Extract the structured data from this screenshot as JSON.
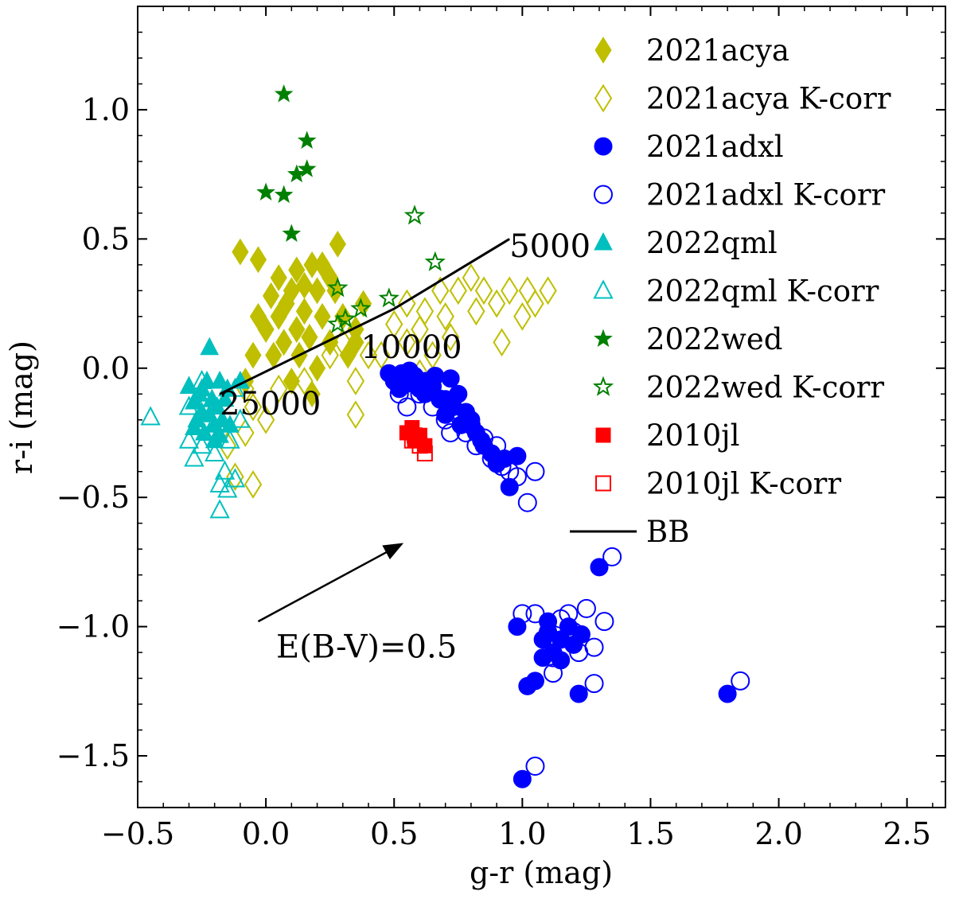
{
  "chart_data": {
    "type": "scatter",
    "xlabel": "g-r (mag)",
    "ylabel": "r-i (mag)",
    "xlim": [
      -0.5,
      2.65
    ],
    "ylim": [
      -1.7,
      1.4
    ],
    "xticks": [
      -0.5,
      0.0,
      0.5,
      1.0,
      1.5,
      2.0,
      2.5
    ],
    "xtick_labels": [
      "−0.5",
      "0.0",
      "0.5",
      "1.0",
      "1.5",
      "2.0",
      "2.5"
    ],
    "yticks": [
      1.0,
      0.5,
      0.0,
      -0.5,
      -1.0,
      -1.5
    ],
    "ytick_labels": [
      "1.0",
      "0.5",
      "0.0",
      "−0.5",
      "−1.0",
      "−1.5"
    ],
    "legend_position": "top-right",
    "grid": false,
    "series": [
      {
        "name": "2021acya",
        "marker": "diamond",
        "filled": true,
        "color": "#bfbf00",
        "points": [
          [
            -0.08,
            -0.05
          ],
          [
            -0.05,
            0.05
          ],
          [
            0.0,
            0.15
          ],
          [
            0.02,
            0.28
          ],
          [
            0.05,
            0.35
          ],
          [
            0.05,
            0.2
          ],
          [
            0.07,
            0.1
          ],
          [
            0.08,
            0.25
          ],
          [
            0.1,
            0.3
          ],
          [
            0.12,
            0.15
          ],
          [
            0.13,
            0.05
          ],
          [
            0.15,
            0.22
          ],
          [
            0.15,
            0.32
          ],
          [
            0.17,
            0.12
          ],
          [
            0.18,
            0.4
          ],
          [
            0.2,
            0.3
          ],
          [
            0.22,
            0.2
          ],
          [
            0.25,
            0.1
          ],
          [
            0.27,
            0.3
          ],
          [
            0.28,
            0.48
          ],
          [
            0.3,
            0.2
          ],
          [
            0.32,
            0.05
          ],
          [
            0.35,
            0.15
          ],
          [
            0.38,
            0.25
          ],
          [
            0.1,
            -0.05
          ],
          [
            0.03,
            0.05
          ],
          [
            -0.03,
            0.2
          ],
          [
            0.18,
            -0.1
          ],
          [
            -0.1,
            0.45
          ],
          [
            -0.03,
            0.42
          ],
          [
            0.2,
            0.0
          ],
          [
            0.25,
            0.35
          ],
          [
            0.22,
            0.4
          ],
          [
            0.12,
            0.38
          ],
          [
            0.35,
            0.1
          ]
        ]
      },
      {
        "name": "2021acya K-corr",
        "marker": "diamond",
        "filled": false,
        "color": "#bfbf00",
        "points": [
          [
            -0.15,
            -0.3
          ],
          [
            -0.12,
            -0.42
          ],
          [
            -0.08,
            -0.25
          ],
          [
            -0.05,
            -0.15
          ],
          [
            0.0,
            -0.2
          ],
          [
            0.05,
            -0.08
          ],
          [
            -0.05,
            -0.45
          ],
          [
            0.3,
            0.1
          ],
          [
            0.35,
            -0.05
          ],
          [
            0.35,
            -0.18
          ],
          [
            0.45,
            0.05
          ],
          [
            0.5,
            0.17
          ],
          [
            0.55,
            0.1
          ],
          [
            0.55,
            0.25
          ],
          [
            0.6,
            0.15
          ],
          [
            0.65,
            0.05
          ],
          [
            0.7,
            0.2
          ],
          [
            0.72,
            0.12
          ],
          [
            0.75,
            0.3
          ],
          [
            0.8,
            0.35
          ],
          [
            0.82,
            0.22
          ],
          [
            0.85,
            0.3
          ],
          [
            0.9,
            0.25
          ],
          [
            0.92,
            0.1
          ],
          [
            0.95,
            0.3
          ],
          [
            1.0,
            0.2
          ],
          [
            1.02,
            0.3
          ],
          [
            1.05,
            0.25
          ],
          [
            1.1,
            0.3
          ],
          [
            0.6,
            -0.02
          ],
          [
            0.4,
            0.05
          ],
          [
            -0.08,
            -0.08
          ],
          [
            0.15,
            -0.05
          ],
          [
            0.25,
            0.05
          ],
          [
            0.62,
            0.22
          ],
          [
            0.68,
            0.3
          ]
        ]
      },
      {
        "name": "2021adxl",
        "marker": "circle",
        "filled": true,
        "color": "#0000ff",
        "points": [
          [
            0.48,
            -0.02
          ],
          [
            0.5,
            -0.05
          ],
          [
            0.53,
            -0.02
          ],
          [
            0.55,
            -0.06
          ],
          [
            0.58,
            -0.03
          ],
          [
            0.6,
            -0.08
          ],
          [
            0.62,
            -0.1
          ],
          [
            0.65,
            -0.07
          ],
          [
            0.68,
            -0.12
          ],
          [
            0.7,
            -0.12
          ],
          [
            0.73,
            -0.15
          ],
          [
            0.75,
            -0.1
          ],
          [
            0.78,
            -0.17
          ],
          [
            0.8,
            -0.2
          ],
          [
            0.82,
            -0.25
          ],
          [
            0.85,
            -0.3
          ],
          [
            0.88,
            -0.33
          ],
          [
            0.9,
            -0.37
          ],
          [
            0.93,
            -0.35
          ],
          [
            0.95,
            -0.46
          ],
          [
            0.98,
            -0.34
          ],
          [
            0.72,
            -0.04
          ],
          [
            0.66,
            -0.03
          ],
          [
            0.56,
            -0.01
          ],
          [
            0.52,
            -0.08
          ],
          [
            0.62,
            -0.05
          ],
          [
            0.7,
            -0.18
          ],
          [
            0.76,
            -0.22
          ],
          [
            0.84,
            -0.28
          ],
          [
            1.3,
            -0.77
          ],
          [
            0.98,
            -1.0
          ],
          [
            1.02,
            -1.23
          ],
          [
            1.05,
            -1.21
          ],
          [
            1.08,
            -1.05
          ],
          [
            1.1,
            -0.98
          ],
          [
            1.12,
            -1.1
          ],
          [
            1.15,
            -1.05
          ],
          [
            1.15,
            -1.13
          ],
          [
            1.18,
            -1.0
          ],
          [
            1.2,
            -1.07
          ],
          [
            1.23,
            -1.03
          ],
          [
            1.22,
            -1.26
          ],
          [
            1.8,
            -1.26
          ],
          [
            1.0,
            -1.59
          ],
          [
            1.1,
            -1.02
          ],
          [
            1.08,
            -1.12
          ]
        ]
      },
      {
        "name": "2021adxl K-corr",
        "marker": "circle",
        "filled": false,
        "color": "#0000ff",
        "points": [
          [
            0.52,
            -0.1
          ],
          [
            0.55,
            -0.15
          ],
          [
            0.6,
            -0.1
          ],
          [
            0.65,
            -0.15
          ],
          [
            0.7,
            -0.2
          ],
          [
            0.72,
            -0.25
          ],
          [
            0.75,
            -0.18
          ],
          [
            0.78,
            -0.25
          ],
          [
            0.8,
            -0.22
          ],
          [
            0.82,
            -0.3
          ],
          [
            0.85,
            -0.27
          ],
          [
            0.88,
            -0.35
          ],
          [
            0.92,
            -0.38
          ],
          [
            0.95,
            -0.4
          ],
          [
            0.98,
            -0.42
          ],
          [
            1.02,
            -0.52
          ],
          [
            1.05,
            -0.4
          ],
          [
            1.35,
            -0.73
          ],
          [
            1.0,
            -0.95
          ],
          [
            1.05,
            -0.95
          ],
          [
            1.1,
            -1.05
          ],
          [
            1.12,
            -1.18
          ],
          [
            1.15,
            -0.97
          ],
          [
            1.18,
            -0.95
          ],
          [
            1.2,
            -1.02
          ],
          [
            1.22,
            -1.1
          ],
          [
            1.25,
            -0.93
          ],
          [
            1.28,
            -1.08
          ],
          [
            1.28,
            -1.22
          ],
          [
            1.32,
            -0.98
          ],
          [
            1.85,
            -1.21
          ],
          [
            1.05,
            -1.54
          ],
          [
            0.58,
            -0.05
          ],
          [
            0.68,
            -0.12
          ],
          [
            0.9,
            -0.3
          ],
          [
            1.12,
            -1.12
          ]
        ]
      },
      {
        "name": "2022qml",
        "marker": "triangle",
        "filled": true,
        "color": "#00bfbf",
        "points": [
          [
            -0.3,
            -0.07
          ],
          [
            -0.28,
            -0.13
          ],
          [
            -0.27,
            -0.2
          ],
          [
            -0.26,
            -0.1
          ],
          [
            -0.25,
            -0.17
          ],
          [
            -0.24,
            -0.25
          ],
          [
            -0.23,
            -0.05
          ],
          [
            -0.22,
            -0.18
          ],
          [
            -0.21,
            -0.12
          ],
          [
            -0.2,
            -0.22
          ],
          [
            -0.19,
            -0.15
          ],
          [
            -0.18,
            -0.26
          ],
          [
            -0.17,
            -0.2
          ],
          [
            -0.16,
            -0.12
          ],
          [
            -0.15,
            -0.08
          ],
          [
            -0.14,
            -0.22
          ],
          [
            -0.22,
            0.08
          ],
          [
            -0.1,
            -0.05
          ],
          [
            -0.25,
            -0.08
          ],
          [
            -0.2,
            -0.28
          ],
          [
            -0.28,
            -0.23
          ],
          [
            -0.18,
            -0.05
          ]
        ]
      },
      {
        "name": "2022qml K-corr",
        "marker": "triangle",
        "filled": false,
        "color": "#00bfbf",
        "points": [
          [
            -0.45,
            -0.19
          ],
          [
            -0.3,
            -0.28
          ],
          [
            -0.28,
            -0.35
          ],
          [
            -0.27,
            -0.22
          ],
          [
            -0.25,
            -0.3
          ],
          [
            -0.23,
            -0.12
          ],
          [
            -0.22,
            -0.25
          ],
          [
            -0.2,
            -0.33
          ],
          [
            -0.18,
            -0.45
          ],
          [
            -0.18,
            -0.55
          ],
          [
            -0.16,
            -0.4
          ],
          [
            -0.15,
            -0.47
          ],
          [
            -0.14,
            -0.28
          ],
          [
            -0.12,
            -0.43
          ],
          [
            -0.1,
            -0.2
          ],
          [
            -0.25,
            -0.05
          ],
          [
            -0.12,
            -0.08
          ],
          [
            -0.3,
            -0.15
          ]
        ]
      },
      {
        "name": "2022wed",
        "marker": "star",
        "filled": true,
        "color": "#008000",
        "points": [
          [
            0.07,
            1.06
          ],
          [
            0.16,
            0.88
          ],
          [
            0.16,
            0.77
          ],
          [
            0.12,
            0.75
          ],
          [
            0.0,
            0.68
          ],
          [
            0.07,
            0.67
          ],
          [
            0.1,
            0.52
          ]
        ]
      },
      {
        "name": "2022wed K-corr",
        "marker": "star",
        "filled": false,
        "color": "#008000",
        "points": [
          [
            0.58,
            0.59
          ],
          [
            0.66,
            0.41
          ],
          [
            0.28,
            0.31
          ],
          [
            0.37,
            0.23
          ],
          [
            0.28,
            0.17
          ],
          [
            0.31,
            0.19
          ],
          [
            0.48,
            0.27
          ]
        ]
      },
      {
        "name": "2010jl",
        "marker": "square",
        "filled": true,
        "color": "#ff0000",
        "points": [
          [
            0.55,
            -0.25
          ],
          [
            0.57,
            -0.23
          ],
          [
            0.58,
            -0.28
          ],
          [
            0.6,
            -0.26
          ],
          [
            0.62,
            -0.3
          ]
        ]
      },
      {
        "name": "2010jl K-corr",
        "marker": "square",
        "filled": false,
        "color": "#ff0000",
        "points": [
          [
            0.57,
            -0.28
          ],
          [
            0.6,
            -0.3
          ],
          [
            0.62,
            -0.33
          ],
          [
            0.58,
            -0.26
          ]
        ]
      }
    ],
    "blackbody": {
      "name": "BB",
      "points": [
        [
          -0.18,
          -0.1
        ],
        [
          0.5,
          0.23
        ],
        [
          0.95,
          0.5
        ]
      ],
      "labels": [
        {
          "text": "5000",
          "x": 0.95,
          "y": 0.43
        },
        {
          "text": "10000",
          "x": 0.37,
          "y": 0.04
        },
        {
          "text": "25000",
          "x": -0.18,
          "y": -0.18
        }
      ]
    },
    "reddening_arrow": {
      "label": "E(B-V)=0.5",
      "from": [
        -0.03,
        -0.98
      ],
      "to": [
        0.53,
        -0.68
      ],
      "label_x": 0.04,
      "label_y": -1.12
    }
  }
}
